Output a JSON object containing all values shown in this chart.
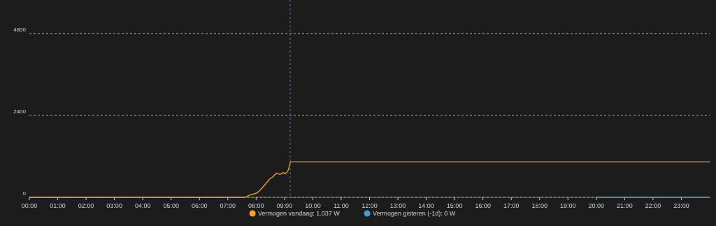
{
  "chart_data": {
    "type": "line",
    "xlim": [
      0,
      24
    ],
    "ylim": [
      0,
      5760
    ],
    "xticks": [
      {
        "value": 0,
        "label": "00:00"
      },
      {
        "value": 1,
        "label": "01:00"
      },
      {
        "value": 2,
        "label": "02:00"
      },
      {
        "value": 3,
        "label": "03:00"
      },
      {
        "value": 4,
        "label": "04:00"
      },
      {
        "value": 5,
        "label": "05:00"
      },
      {
        "value": 6,
        "label": "06:00"
      },
      {
        "value": 7,
        "label": "07:00"
      },
      {
        "value": 8,
        "label": "08:00"
      },
      {
        "value": 9,
        "label": "09:00"
      },
      {
        "value": 10,
        "label": "10:00"
      },
      {
        "value": 11,
        "label": "11:00"
      },
      {
        "value": 12,
        "label": "12:00"
      },
      {
        "value": 13,
        "label": "13:00"
      },
      {
        "value": 14,
        "label": "14:00"
      },
      {
        "value": 15,
        "label": "15:00"
      },
      {
        "value": 16,
        "label": "16:00"
      },
      {
        "value": 17,
        "label": "17:00"
      },
      {
        "value": 18,
        "label": "18:00"
      },
      {
        "value": 19,
        "label": "19:00"
      },
      {
        "value": 20,
        "label": "20:00"
      },
      {
        "value": 21,
        "label": "21:00"
      },
      {
        "value": 22,
        "label": "22:00"
      },
      {
        "value": 23,
        "label": "23:00"
      }
    ],
    "yticks": [
      0,
      2400,
      4800
    ],
    "grid": "y",
    "legend": "bottom",
    "marker": "none",
    "ref_lines": [
      {
        "axis": "x",
        "value": 9.2,
        "color": "#3ea0e4",
        "line_style": "dashed"
      }
    ],
    "series": [
      {
        "name": "Vermogen gisteren (-1d): 0 W",
        "color": "#3ea0e4",
        "x": [
          20,
          24
        ],
        "values": [
          0,
          0
        ]
      },
      {
        "name": "Vermogen vandaag: 1.037 W",
        "color": "#ff9f1c",
        "x": [
          0,
          7.6,
          7.81,
          8.02,
          8.14,
          8.31,
          8.47,
          8.59,
          8.72,
          8.84,
          8.96,
          9.04,
          9.13,
          9.21,
          24
        ],
        "values": [
          0,
          0,
          76,
          123,
          211,
          369,
          533,
          601,
          711,
          670,
          724,
          690,
          793,
          1037,
          1037
        ]
      }
    ]
  }
}
